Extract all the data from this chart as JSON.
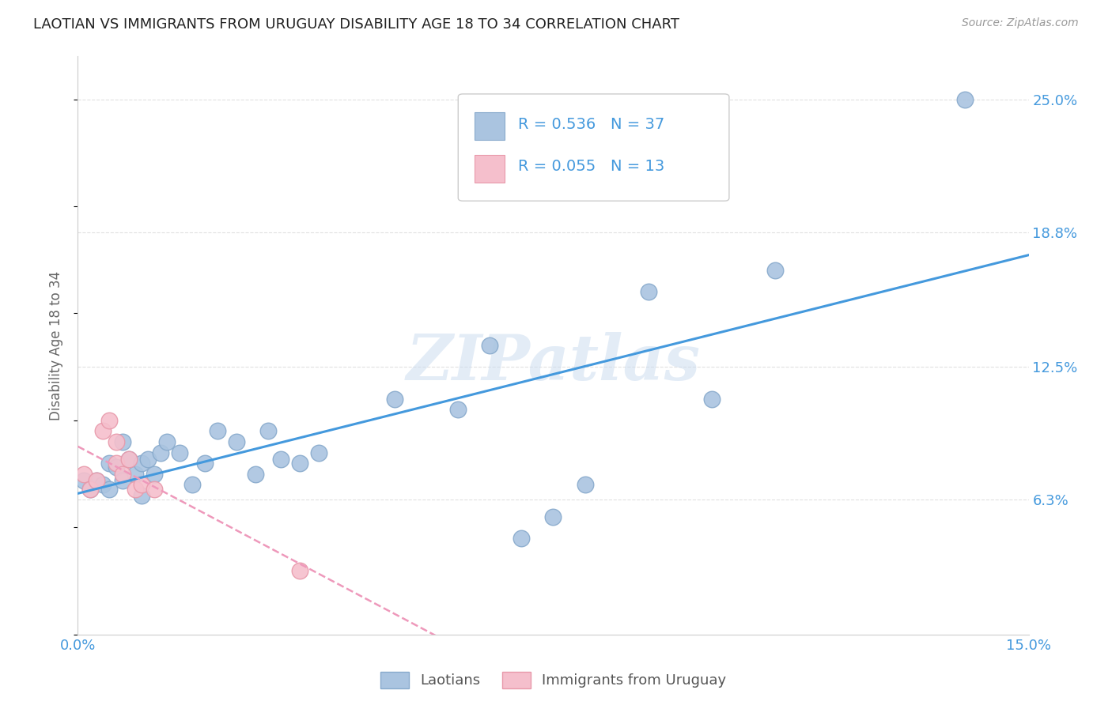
{
  "title": "LAOTIAN VS IMMIGRANTS FROM URUGUAY DISABILITY AGE 18 TO 34 CORRELATION CHART",
  "source": "Source: ZipAtlas.com",
  "ylabel_label": "Disability Age 18 to 34",
  "xlim": [
    0.0,
    0.15
  ],
  "ylim": [
    0.0,
    0.27
  ],
  "xticks": [
    0.0,
    0.03,
    0.06,
    0.09,
    0.12,
    0.15
  ],
  "xtick_labels": [
    "0.0%",
    "",
    "",
    "",
    "",
    "15.0%"
  ],
  "ytick_vals_right": [
    0.063,
    0.125,
    0.188,
    0.25
  ],
  "ytick_labels_right": [
    "6.3%",
    "12.5%",
    "18.8%",
    "25.0%"
  ],
  "background_color": "#ffffff",
  "grid_color": "#e0e0e0",
  "watermark": "ZIPatlas",
  "legend_R1": "0.536",
  "legend_N1": "37",
  "legend_R2": "0.055",
  "legend_N2": "13",
  "laotian_color": "#aac4e0",
  "laotian_edge_color": "#88aacc",
  "uruguay_color": "#f5bfcc",
  "uruguay_edge_color": "#e899aa",
  "trend_laotian_color": "#4499dd",
  "trend_uruguay_color": "#ee99bb",
  "laotian_x": [
    0.001,
    0.002,
    0.003,
    0.004,
    0.005,
    0.005,
    0.006,
    0.007,
    0.007,
    0.008,
    0.009,
    0.01,
    0.01,
    0.011,
    0.012,
    0.013,
    0.014,
    0.016,
    0.018,
    0.02,
    0.022,
    0.025,
    0.028,
    0.03,
    0.032,
    0.035,
    0.038,
    0.05,
    0.06,
    0.065,
    0.07,
    0.075,
    0.08,
    0.09,
    0.1,
    0.11,
    0.14
  ],
  "laotian_y": [
    0.072,
    0.068,
    0.072,
    0.07,
    0.068,
    0.08,
    0.078,
    0.072,
    0.09,
    0.082,
    0.075,
    0.065,
    0.08,
    0.082,
    0.075,
    0.085,
    0.09,
    0.085,
    0.07,
    0.08,
    0.095,
    0.09,
    0.075,
    0.095,
    0.082,
    0.08,
    0.085,
    0.11,
    0.105,
    0.135,
    0.045,
    0.055,
    0.07,
    0.16,
    0.11,
    0.17,
    0.25
  ],
  "uruguay_x": [
    0.001,
    0.002,
    0.003,
    0.004,
    0.005,
    0.006,
    0.006,
    0.007,
    0.008,
    0.009,
    0.01,
    0.012,
    0.035
  ],
  "uruguay_y": [
    0.075,
    0.068,
    0.072,
    0.095,
    0.1,
    0.09,
    0.08,
    0.075,
    0.082,
    0.068,
    0.07,
    0.068,
    0.03
  ]
}
